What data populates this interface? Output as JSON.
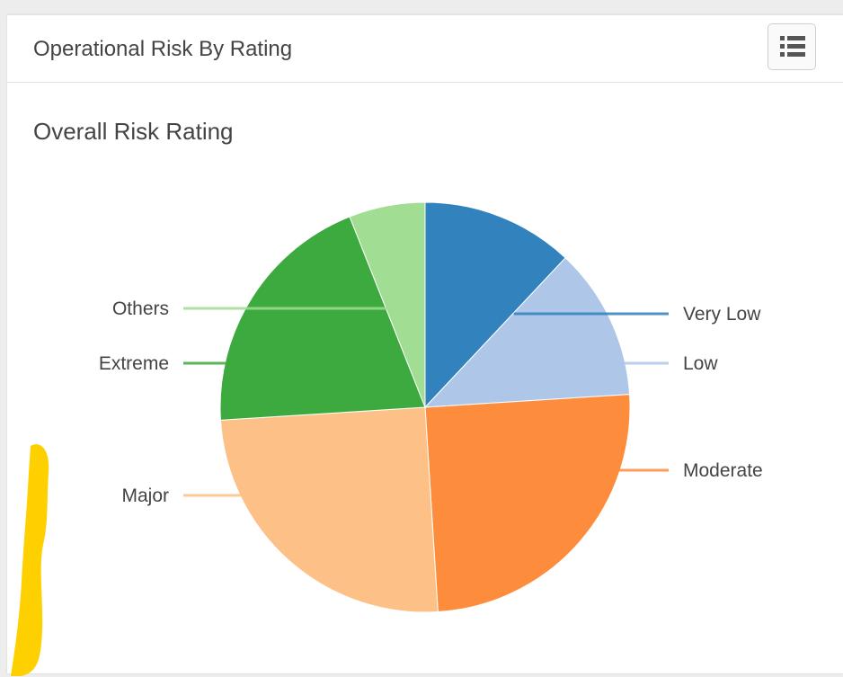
{
  "panel": {
    "title": "Operational Risk By Rating",
    "menu_icon": "list-icon"
  },
  "chart_data": {
    "type": "pie",
    "title": "Overall Risk Rating",
    "slices": [
      {
        "label": "Very Low",
        "value": 12,
        "color": "#3182bd"
      },
      {
        "label": "Low",
        "value": 12,
        "color": "#aec7e8"
      },
      {
        "label": "Moderate",
        "value": 25,
        "color": "#fd8d3c"
      },
      {
        "label": "Major",
        "value": 25,
        "color": "#fdc086"
      },
      {
        "label": "Extreme",
        "value": 20,
        "color": "#3daa3f"
      },
      {
        "label": "Others",
        "value": 6,
        "color": "#a1dd93"
      }
    ],
    "start_angle_deg": 0,
    "direction": "clockwise",
    "legend": "none"
  },
  "annotation": {
    "type": "highlighter-mark",
    "color": "#ffd000"
  }
}
